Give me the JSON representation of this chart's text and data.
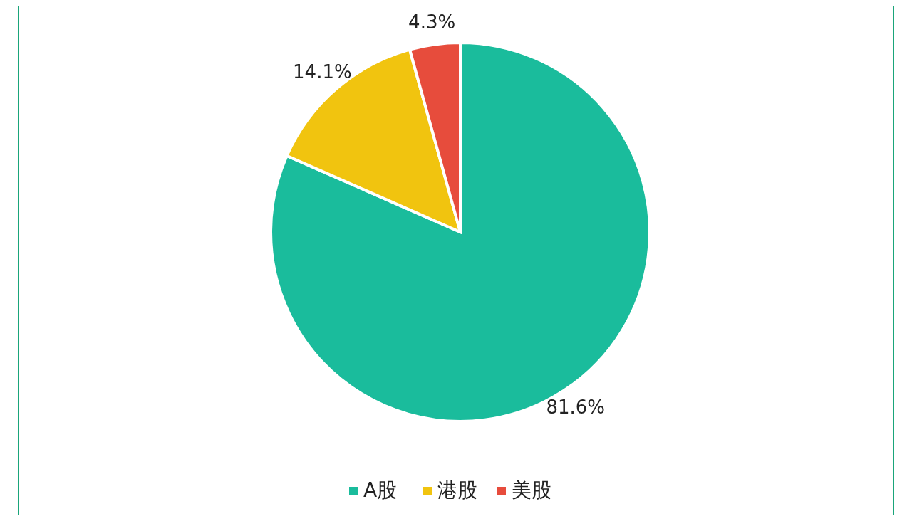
{
  "chart_data": {
    "type": "pie",
    "categories": [
      "A股",
      "港股",
      "美股"
    ],
    "values": [
      81.6,
      14.1,
      4.3
    ],
    "colors": [
      "#1abc9c",
      "#f1c40f",
      "#e74c3c"
    ],
    "value_labels": [
      "81.6%",
      "14.1%",
      "4.3%"
    ],
    "legend": "bottom"
  }
}
